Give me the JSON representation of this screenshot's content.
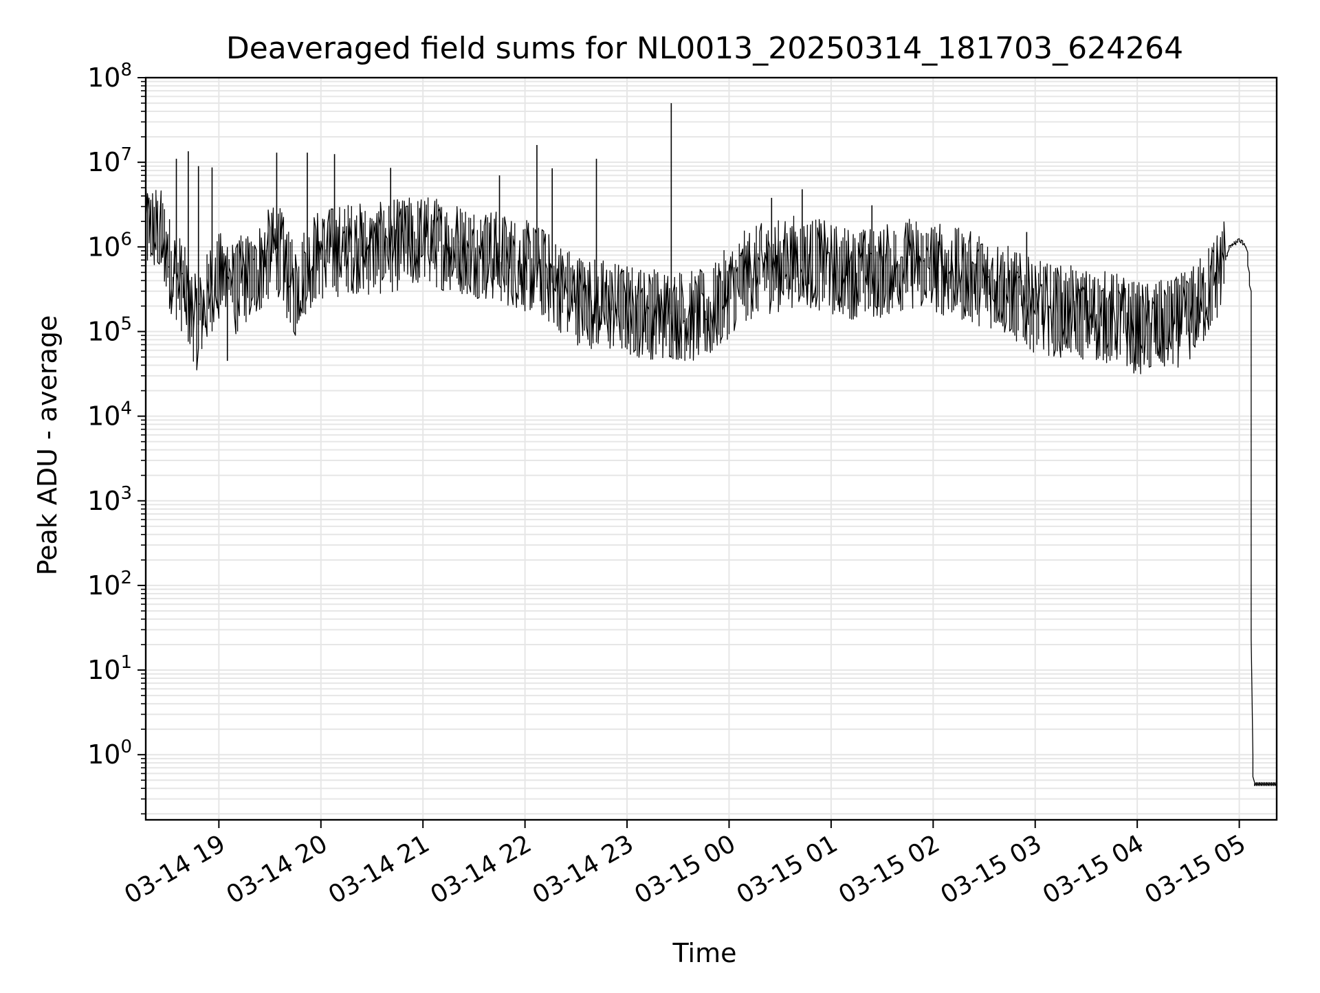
{
  "chart_data": {
    "type": "line",
    "title": "Deaveraged field sums for NL0013_20250314_181703_624264",
    "xlabel": "Time",
    "ylabel": "Peak ADU - average",
    "yscale": "log",
    "grid": true,
    "line_color": "#000000",
    "grid_color": "#e6e6e6",
    "xlim": [
      "2025-03-14 18:17",
      "2025-03-15 05:22"
    ],
    "ylim": [
      0.17,
      100000000
    ],
    "x_ticks": [
      {
        "t": "2025-03-14 19:00",
        "label": "03-14 19"
      },
      {
        "t": "2025-03-14 20:00",
        "label": "03-14 20"
      },
      {
        "t": "2025-03-14 21:00",
        "label": "03-14 21"
      },
      {
        "t": "2025-03-14 22:00",
        "label": "03-14 22"
      },
      {
        "t": "2025-03-14 23:00",
        "label": "03-14 23"
      },
      {
        "t": "2025-03-15 00:00",
        "label": "03-15 00"
      },
      {
        "t": "2025-03-15 01:00",
        "label": "03-15 01"
      },
      {
        "t": "2025-03-15 02:00",
        "label": "03-15 02"
      },
      {
        "t": "2025-03-15 03:00",
        "label": "03-15 03"
      },
      {
        "t": "2025-03-15 04:00",
        "label": "03-15 04"
      },
      {
        "t": "2025-03-15 05:00",
        "label": "03-15 05"
      }
    ],
    "y_ticks": [
      {
        "v": 1,
        "base": "10",
        "exp": "0"
      },
      {
        "v": 10,
        "base": "10",
        "exp": "1"
      },
      {
        "v": 100,
        "base": "10",
        "exp": "2"
      },
      {
        "v": 1000,
        "base": "10",
        "exp": "3"
      },
      {
        "v": 10000,
        "base": "10",
        "exp": "4"
      },
      {
        "v": 100000,
        "base": "10",
        "exp": "5"
      },
      {
        "v": 1000000,
        "base": "10",
        "exp": "6"
      },
      {
        "v": 10000000,
        "base": "10",
        "exp": "7"
      },
      {
        "v": 100000000,
        "base": "10",
        "exp": "8"
      }
    ],
    "series": [
      {
        "points": [
          [
            "2025-03-14 18:17",
            1500000
          ],
          [
            "2025-03-14 18:20",
            1700000
          ],
          [
            "2025-03-14 18:24",
            1600000
          ],
          [
            "2025-03-14 18:28",
            1200000
          ],
          [
            "2025-03-14 18:32",
            600000
          ],
          [
            "2025-03-14 18:36",
            450000
          ],
          [
            "2025-03-14 18:40",
            300000
          ],
          [
            "2025-03-14 18:44",
            180000
          ],
          [
            "2025-03-14 18:48",
            120000
          ],
          [
            "2025-03-14 18:52",
            200000
          ],
          [
            "2025-03-14 18:56",
            350000
          ],
          [
            "2025-03-14 19:00",
            400000
          ],
          [
            "2025-03-14 19:05",
            500000
          ],
          [
            "2025-03-14 19:10",
            300000
          ],
          [
            "2025-03-14 19:15",
            450000
          ],
          [
            "2025-03-14 19:20",
            400000
          ],
          [
            "2025-03-14 19:25",
            600000
          ],
          [
            "2025-03-14 19:30",
            800000
          ],
          [
            "2025-03-14 19:35",
            1000000
          ],
          [
            "2025-03-14 19:40",
            500000
          ],
          [
            "2025-03-14 19:45",
            300000
          ],
          [
            "2025-03-14 19:50",
            500000
          ],
          [
            "2025-03-14 19:55",
            700000
          ],
          [
            "2025-03-14 20:00",
            800000
          ],
          [
            "2025-03-14 20:10",
            900000
          ],
          [
            "2025-03-14 20:20",
            1000000
          ],
          [
            "2025-03-14 20:30",
            900000
          ],
          [
            "2025-03-14 20:40",
            1000000
          ],
          [
            "2025-03-14 20:50",
            1100000
          ],
          [
            "2025-03-14 21:00",
            1200000
          ],
          [
            "2025-03-14 21:10",
            1100000
          ],
          [
            "2025-03-14 21:20",
            1000000
          ],
          [
            "2025-03-14 21:30",
            900000
          ],
          [
            "2025-03-14 21:40",
            800000
          ],
          [
            "2025-03-14 21:50",
            700000
          ],
          [
            "2025-03-14 22:00",
            600000
          ],
          [
            "2025-03-14 22:10",
            500000
          ],
          [
            "2025-03-14 22:20",
            350000
          ],
          [
            "2025-03-14 22:30",
            250000
          ],
          [
            "2025-03-14 22:40",
            220000
          ],
          [
            "2025-03-14 22:50",
            200000
          ],
          [
            "2025-03-14 23:00",
            180000
          ],
          [
            "2025-03-14 23:10",
            170000
          ],
          [
            "2025-03-14 23:20",
            160000
          ],
          [
            "2025-03-14 23:30",
            160000
          ],
          [
            "2025-03-14 23:40",
            150000
          ],
          [
            "2025-03-14 23:50",
            160000
          ],
          [
            "2025-03-15 00:00",
            300000
          ],
          [
            "2025-03-15 00:10",
            450000
          ],
          [
            "2025-03-15 00:20",
            550000
          ],
          [
            "2025-03-15 00:30",
            600000
          ],
          [
            "2025-03-15 00:40",
            700000
          ],
          [
            "2025-03-15 00:50",
            650000
          ],
          [
            "2025-03-15 01:00",
            550000
          ],
          [
            "2025-03-15 01:10",
            500000
          ],
          [
            "2025-03-15 01:20",
            480000
          ],
          [
            "2025-03-15 01:30",
            500000
          ],
          [
            "2025-03-15 01:40",
            600000
          ],
          [
            "2025-03-15 01:50",
            650000
          ],
          [
            "2025-03-15 02:00",
            600000
          ],
          [
            "2025-03-15 02:10",
            500000
          ],
          [
            "2025-03-15 02:20",
            450000
          ],
          [
            "2025-03-15 02:30",
            400000
          ],
          [
            "2025-03-15 02:40",
            350000
          ],
          [
            "2025-03-15 02:50",
            250000
          ],
          [
            "2025-03-15 03:00",
            200000
          ],
          [
            "2025-03-15 03:10",
            180000
          ],
          [
            "2025-03-15 03:20",
            170000
          ],
          [
            "2025-03-15 03:30",
            160000
          ],
          [
            "2025-03-15 03:40",
            150000
          ],
          [
            "2025-03-15 03:50",
            140000
          ],
          [
            "2025-03-15 04:00",
            110000
          ],
          [
            "2025-03-15 04:10",
            110000
          ],
          [
            "2025-03-15 04:20",
            120000
          ],
          [
            "2025-03-15 04:30",
            150000
          ],
          [
            "2025-03-15 04:40",
            250000
          ],
          [
            "2025-03-15 04:50",
            600000
          ],
          [
            "2025-03-15 04:55",
            1000000
          ],
          [
            "2025-03-15 05:00",
            1200000
          ],
          [
            "2025-03-15 05:03",
            1100000
          ],
          [
            "2025-03-15 05:05",
            900000
          ],
          [
            "2025-03-15 05:07",
            300000
          ],
          [
            "2025-03-15 05:08",
            1
          ],
          [
            "2025-03-15 05:09",
            0.45
          ],
          [
            "2025-03-15 05:22",
            0.45
          ]
        ],
        "spikes": [
          [
            "2025-03-14 18:35",
            11000000
          ],
          [
            "2025-03-14 18:42",
            13500000
          ],
          [
            "2025-03-14 18:48",
            9000000
          ],
          [
            "2025-03-14 18:56",
            8700000
          ],
          [
            "2025-03-14 19:05",
            45000
          ],
          [
            "2025-03-14 19:34",
            13000000
          ],
          [
            "2025-03-14 19:52",
            13000000
          ],
          [
            "2025-03-14 20:08",
            12500000
          ],
          [
            "2025-03-14 20:41",
            8600000
          ],
          [
            "2025-03-14 21:45",
            7000000
          ],
          [
            "2025-03-14 22:07",
            16000000
          ],
          [
            "2025-03-14 22:16",
            8500000
          ],
          [
            "2025-03-14 22:42",
            11000000
          ],
          [
            "2025-03-14 23:26",
            50000000
          ],
          [
            "2025-03-15 00:25",
            3800000
          ],
          [
            "2025-03-15 00:43",
            4800000
          ],
          [
            "2025-03-15 01:24",
            3100000
          ],
          [
            "2025-03-15 02:55",
            1500000
          ]
        ]
      }
    ]
  }
}
